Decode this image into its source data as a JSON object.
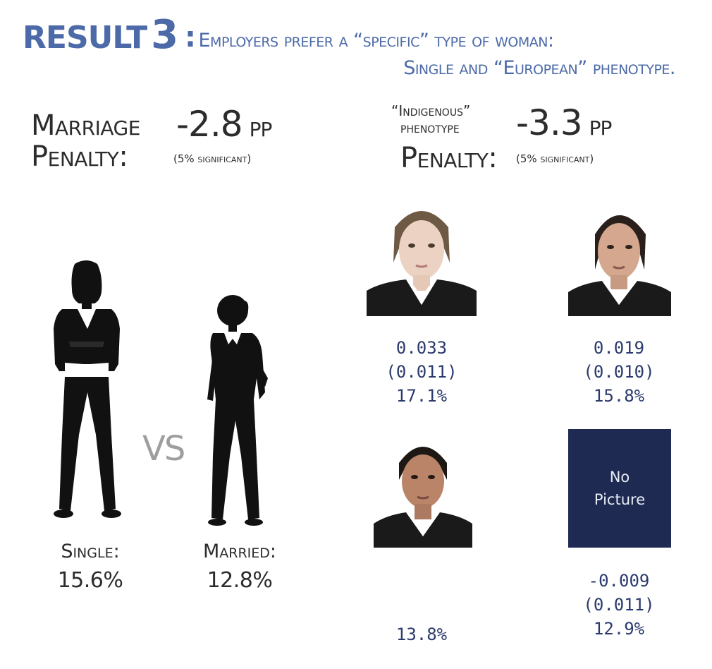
{
  "header": {
    "result_word": "Result",
    "result_number": "3",
    "colon": ":",
    "line1": "Employers prefer a “specific” type of woman:",
    "line2": "Single and “European” phenotype."
  },
  "marriage": {
    "label_line1": "Marriage",
    "label_line2": "Penalty:",
    "value": "-2.8",
    "unit": "pp",
    "significance": "(5% significant)"
  },
  "phenotype": {
    "label_line1": "“Indigenous”",
    "label_line2": "phenotype",
    "label_line3": "Penalty:",
    "value": "-3.3",
    "unit": "pp",
    "significance": "(5% significant)"
  },
  "comparison": {
    "vs": "VS",
    "single_label": "Single:",
    "single_value": "15.6%",
    "married_label": "Married:",
    "married_value": "12.8%"
  },
  "photos": {
    "european": {
      "coef": "0.033",
      "se": "(0.011)",
      "rate": "17.1%"
    },
    "mixed": {
      "coef": "0.019",
      "se": "(0.010)",
      "rate": "15.8%"
    },
    "indigenous": {
      "rate": "13.8%"
    },
    "nopicture": {
      "line1": "No",
      "line2": "Picture",
      "coef": "-0.009",
      "se": "(0.011)",
      "rate": "12.9%"
    }
  },
  "colors": {
    "title_blue": "#4c6aa8",
    "stat_navy": "#2a3a6c",
    "nopic_bg": "#1e2a52",
    "text_dark": "#2c2c2c"
  }
}
